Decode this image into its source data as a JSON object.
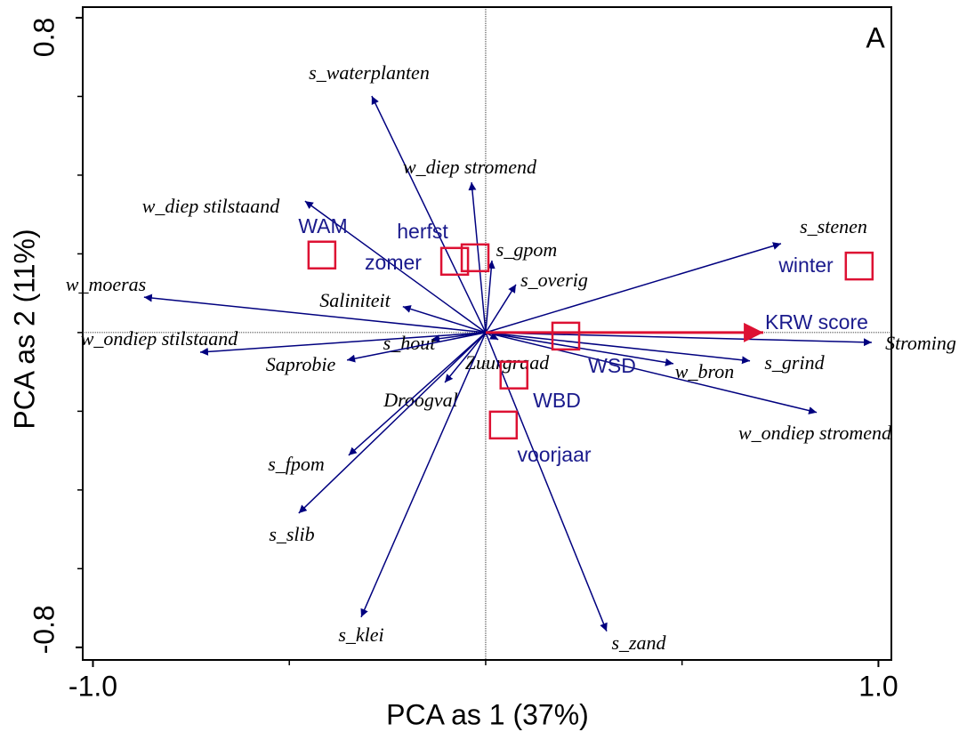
{
  "chart_data": {
    "type": "biplot",
    "panel_label": "A",
    "x_label": "PCA as 1 (37%)",
    "y_label": "PCA as 2 (11%)",
    "xlim": [
      -1.026,
      1.033
    ],
    "ylim": [
      -0.832,
      0.827
    ],
    "xticks": [
      {
        "value": -1.0,
        "label": "-1.0"
      },
      {
        "value": 1.0,
        "label": "1.0"
      }
    ],
    "yticks": [
      {
        "value": -0.8,
        "label": "-0.8"
      },
      {
        "value": 0.8,
        "label": "0.8"
      }
    ],
    "xminor": [
      -0.5,
      0,
      0.5
    ],
    "yminor": [
      -0.6,
      -0.4,
      -0.2,
      0,
      0.2,
      0.4,
      0.6
    ],
    "vectors": {
      "color": "#00007f",
      "names": [
        "s_waterplanten",
        "w_diep stromend",
        "w_diep stilstaand",
        "s_gpom",
        "s_overig",
        "s_stenen",
        "w_moeras",
        "Saliniteit",
        "w_ondiep stilstaand",
        "s_hout",
        "Saprobie",
        "Zuurgraad",
        "Droogval",
        "s_fpom",
        "s_slib",
        "s_klei",
        "s_zand",
        "w_bron",
        "s_grind",
        "Stroming",
        "w_ondiep stromend"
      ],
      "x": [
        -0.29,
        -0.036,
        -0.46,
        0.016,
        0.077,
        0.752,
        -0.87,
        -0.211,
        -0.727,
        -0.138,
        -0.353,
        0.032,
        -0.104,
        -0.349,
        -0.476,
        -0.317,
        0.308,
        0.478,
        0.673,
        0.983,
        0.843
      ],
      "y": [
        0.601,
        0.382,
        0.334,
        0.183,
        0.122,
        0.226,
        0.09,
        0.066,
        -0.05,
        -0.018,
        -0.07,
        -0.018,
        -0.127,
        -0.312,
        -0.459,
        -0.723,
        -0.759,
        -0.079,
        -0.072,
        -0.025,
        -0.203
      ]
    },
    "supplementary": {
      "name": "KRW score",
      "color": "#dd1133",
      "x": 0.707,
      "y": 0.0
    },
    "points": {
      "color": "#dd1133",
      "label_color": "#1a1a8c",
      "names": [
        "WAM",
        "herfst",
        "zomer",
        "winter",
        "WSD",
        "WBD",
        "voorjaar"
      ],
      "x": [
        -0.417,
        -0.027,
        -0.079,
        0.951,
        0.204,
        0.072,
        0.045
      ],
      "y": [
        0.197,
        0.19,
        0.181,
        0.169,
        -0.009,
        -0.108,
        -0.235
      ]
    }
  }
}
